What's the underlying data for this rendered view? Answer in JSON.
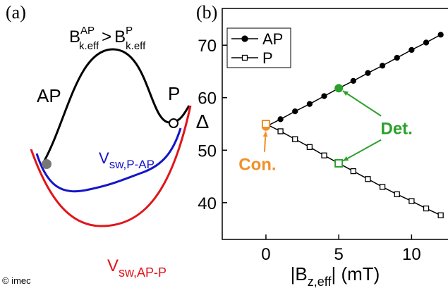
{
  "panel_a": {
    "label": "(a)",
    "relation": {
      "left_base": "B",
      "left_sup": "AP",
      "left_sub": "k.eff",
      "operator": ">",
      "right_base": "B",
      "right_sup": "P",
      "right_sub": "k.eff"
    },
    "state_left": "AP",
    "state_right": "P",
    "curve_blue": {
      "base": "V",
      "sub": "sw,P-AP"
    },
    "curve_red": {
      "base": "V",
      "sub": "sw,AP-P"
    },
    "copyright": "© imec"
  },
  "chart_data": {
    "type": "line",
    "label": "(b)",
    "x_label": {
      "base": "|B",
      "sub": "z,eff",
      "rest": "| (mT)"
    },
    "y_label": "Δ",
    "x": [
      0,
      1,
      2,
      3,
      4,
      5,
      6,
      7,
      8,
      9,
      10,
      11,
      12
    ],
    "series": [
      {
        "name": "AP",
        "color": "#000000",
        "marker": "circle",
        "values": [
          54.5,
          55.9,
          57.4,
          58.8,
          60.3,
          61.8,
          63.2,
          64.7,
          66.1,
          67.6,
          69.1,
          70.5,
          72.0
        ]
      },
      {
        "name": "P",
        "color": "#000000",
        "marker": "square",
        "values": [
          55.0,
          53.6,
          52.1,
          50.6,
          49.0,
          47.5,
          46.0,
          44.5,
          43.0,
          41.6,
          40.3,
          38.9,
          37.6
        ]
      }
    ],
    "annotations": [
      {
        "text": "Con.",
        "color": "#f0902a",
        "index": 0
      },
      {
        "text": "Det.",
        "color": "#2ca02c",
        "index": 5
      }
    ],
    "xlim": [
      -3,
      12.5
    ],
    "ylim": [
      33,
      77
    ],
    "xticks": [
      0,
      5,
      10
    ],
    "yticks": [
      40,
      50,
      60,
      70
    ],
    "legend": "upper left"
  }
}
